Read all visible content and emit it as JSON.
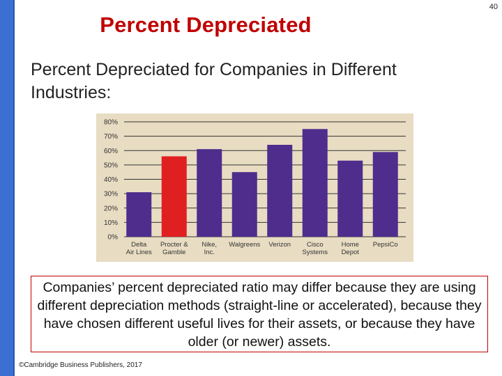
{
  "slide": {
    "number": "40",
    "title": "Percent Depreciated",
    "subtitle": "Percent Depreciated for Companies in Different Industries:",
    "callout": "Companies’ percent depreciated ratio may differ because they are using different depreciation methods (straight-line or accelerated), because they have chosen different useful lives for their assets, or because they have older (or newer) assets.",
    "footer": "©Cambridge Business Publishers, 2017"
  },
  "colors": {
    "bar": "#4e2d8c",
    "highlight": "#e02020",
    "chart_background": "#e8dcc3",
    "title": "#c00000",
    "gridline": "#333333"
  },
  "chart_data": {
    "type": "bar",
    "title": "",
    "xlabel": "",
    "ylabel": "",
    "categories": [
      [
        "Delta",
        "Air Lines"
      ],
      [
        "Procter &",
        "Gamble"
      ],
      [
        "Nike,",
        "Inc."
      ],
      [
        "Walgreens"
      ],
      [
        "Verizon"
      ],
      [
        "Cisco",
        "Systems"
      ],
      [
        "Home",
        "Depot"
      ],
      [
        "PepsiCo"
      ]
    ],
    "values": [
      31,
      56,
      61,
      45,
      64,
      75,
      53,
      59
    ],
    "highlight_index": 1,
    "ylim": [
      0,
      80
    ],
    "yticks": [
      "0%",
      "10%",
      "20%",
      "30%",
      "40%",
      "50%",
      "60%",
      "70%",
      "80%"
    ],
    "grid": true,
    "legend": "none"
  }
}
